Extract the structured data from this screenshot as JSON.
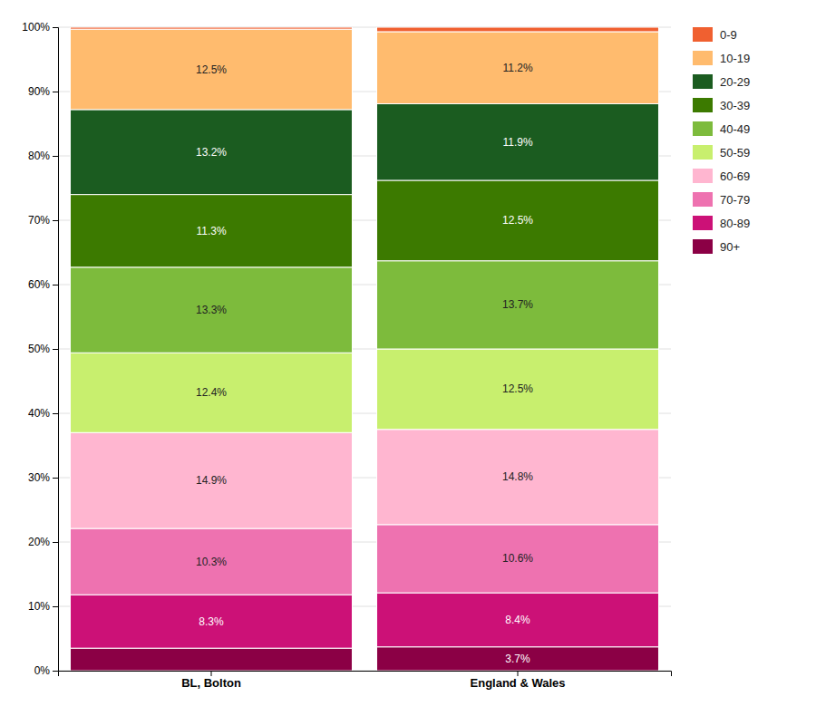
{
  "chart_data": {
    "type": "bar",
    "stacked": true,
    "data_labels": true,
    "grid": true,
    "legend": "right",
    "categories": [
      "BL, Bolton",
      "England & Wales"
    ],
    "ylim": [
      0,
      100
    ],
    "yticks": [
      {
        "value": 0,
        "label": "0%"
      },
      {
        "value": 10,
        "label": "10%"
      },
      {
        "value": 20,
        "label": "20%"
      },
      {
        "value": 30,
        "label": "30%"
      },
      {
        "value": 40,
        "label": "40%"
      },
      {
        "value": 50,
        "label": "50%"
      },
      {
        "value": 60,
        "label": "60%"
      },
      {
        "value": 70,
        "label": "70%"
      },
      {
        "value": 80,
        "label": "80%"
      },
      {
        "value": 90,
        "label": "90%"
      },
      {
        "value": 100,
        "label": "100%"
      }
    ],
    "series": [
      {
        "name": "90+",
        "color": "#8B0045",
        "values": [
          3.5,
          3.7
        ],
        "value_labels": [
          null,
          "3.7%"
        ]
      },
      {
        "name": "80-89",
        "color": "#CC1177",
        "values": [
          8.3,
          8.4
        ],
        "value_labels": [
          "8.3%",
          "8.4%"
        ]
      },
      {
        "name": "70-79",
        "color": "#EE72B0",
        "values": [
          10.3,
          10.6
        ],
        "value_labels": [
          "10.3%",
          "10.6%"
        ]
      },
      {
        "name": "60-69",
        "color": "#FFB6D0",
        "values": [
          14.9,
          14.8
        ],
        "value_labels": [
          "14.9%",
          "14.8%"
        ]
      },
      {
        "name": "50-59",
        "color": "#C8EF6E",
        "values": [
          12.4,
          12.5
        ],
        "value_labels": [
          "12.4%",
          "12.5%"
        ]
      },
      {
        "name": "40-49",
        "color": "#7DBB3C",
        "values": [
          13.3,
          13.7
        ],
        "value_labels": [
          "13.3%",
          "13.7%"
        ]
      },
      {
        "name": "30-39",
        "color": "#3C7A00",
        "values": [
          11.3,
          12.5
        ],
        "value_labels": [
          "11.3%",
          "12.5%"
        ]
      },
      {
        "name": "20-29",
        "color": "#1B5C20",
        "values": [
          13.2,
          11.9
        ],
        "value_labels": [
          "13.2%",
          "11.9%"
        ]
      },
      {
        "name": "10-19",
        "color": "#FFBB6E",
        "values": [
          12.5,
          11.2
        ],
        "value_labels": [
          "12.5%",
          "11.2%"
        ]
      },
      {
        "name": "0-9",
        "color": "#F06030",
        "values": [
          0.3,
          0.7
        ],
        "value_labels": [
          null,
          null
        ]
      }
    ]
  }
}
